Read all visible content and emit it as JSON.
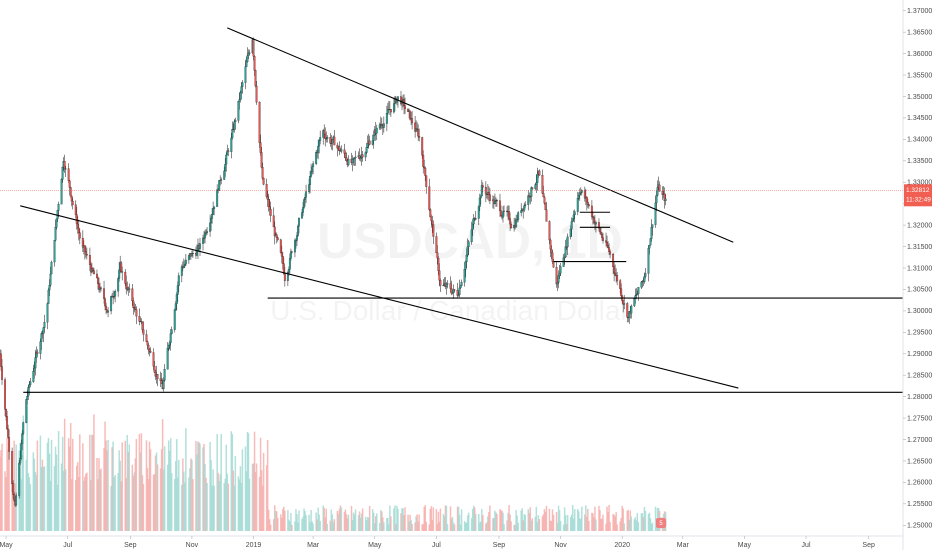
{
  "chart_data": {
    "type": "candlestick",
    "symbol_watermark": "USDCAD, 1D",
    "description_watermark": "U.S. Dollar / Canadian Dollar",
    "y_axis": {
      "min": 1.2475,
      "max": 1.3725,
      "tick_labels": [
        "1.37000",
        "1.36500",
        "1.36000",
        "1.35500",
        "1.35000",
        "1.34500",
        "1.34000",
        "1.33500",
        "1.33000",
        "1.32500",
        "1.32000",
        "1.31500",
        "1.31000",
        "1.30500",
        "1.30000",
        "1.29500",
        "1.29000",
        "1.28500",
        "1.28000",
        "1.27500",
        "1.27000",
        "1.26500",
        "1.26000",
        "1.25500",
        "1.25000"
      ],
      "position": "right"
    },
    "x_axis": {
      "start": "2018-04-25",
      "end": "2020-10-05",
      "tick_labels": [
        {
          "date": "2018-05-01",
          "label": "May"
        },
        {
          "date": "2018-07-01",
          "label": "Jul"
        },
        {
          "date": "2018-09-01",
          "label": "Sep"
        },
        {
          "date": "2018-11-01",
          "label": "Nov"
        },
        {
          "date": "2019-01-01",
          "label": "2019"
        },
        {
          "date": "2019-03-01",
          "label": "Mar"
        },
        {
          "date": "2019-05-01",
          "label": "May"
        },
        {
          "date": "2019-07-01",
          "label": "Jul"
        },
        {
          "date": "2019-09-01",
          "label": "Sep"
        },
        {
          "date": "2019-11-01",
          "label": "Nov"
        },
        {
          "date": "2020-01-01",
          "label": "2020"
        },
        {
          "date": "2020-03-01",
          "label": "Mar"
        },
        {
          "date": "2020-05-01",
          "label": "May"
        },
        {
          "date": "2020-07-01",
          "label": "Jul"
        },
        {
          "date": "2020-09-01",
          "label": "Sep"
        }
      ]
    },
    "price_anchors": [
      {
        "date": "2018-04-25",
        "price": 1.29
      },
      {
        "date": "2018-05-10",
        "price": 1.254
      },
      {
        "date": "2018-05-20",
        "price": 1.278
      },
      {
        "date": "2018-06-10",
        "price": 1.3
      },
      {
        "date": "2018-06-27",
        "price": 1.336
      },
      {
        "date": "2018-07-15",
        "price": 1.315
      },
      {
        "date": "2018-08-10",
        "price": 1.3
      },
      {
        "date": "2018-08-22",
        "price": 1.31
      },
      {
        "date": "2018-09-15",
        "price": 1.294
      },
      {
        "date": "2018-10-03",
        "price": 1.282
      },
      {
        "date": "2018-10-20",
        "price": 1.31
      },
      {
        "date": "2018-11-10",
        "price": 1.315
      },
      {
        "date": "2018-12-10",
        "price": 1.34
      },
      {
        "date": "2018-12-31",
        "price": 1.364
      },
      {
        "date": "2019-01-10",
        "price": 1.33
      },
      {
        "date": "2019-02-01",
        "price": 1.308
      },
      {
        "date": "2019-02-20",
        "price": 1.325
      },
      {
        "date": "2019-03-10",
        "price": 1.342
      },
      {
        "date": "2019-04-10",
        "price": 1.334
      },
      {
        "date": "2019-05-25",
        "price": 1.35
      },
      {
        "date": "2019-06-15",
        "price": 1.34
      },
      {
        "date": "2019-07-05",
        "price": 1.306
      },
      {
        "date": "2019-07-22",
        "price": 1.304
      },
      {
        "date": "2019-08-15",
        "price": 1.329
      },
      {
        "date": "2019-09-15",
        "price": 1.32
      },
      {
        "date": "2019-10-10",
        "price": 1.332
      },
      {
        "date": "2019-10-28",
        "price": 1.306
      },
      {
        "date": "2019-11-20",
        "price": 1.329
      },
      {
        "date": "2019-12-20",
        "price": 1.313
      },
      {
        "date": "2020-01-07",
        "price": 1.299
      },
      {
        "date": "2020-01-22",
        "price": 1.307
      },
      {
        "date": "2020-02-05",
        "price": 1.329
      },
      {
        "date": "2020-02-14",
        "price": 1.325
      }
    ],
    "trend_lines": [
      {
        "name": "upper-descending-trendline",
        "from": {
          "date": "2018-12-06",
          "price": 1.366
        },
        "to": {
          "date": "2020-04-20",
          "price": 1.316
        }
      },
      {
        "name": "lower-descending-trendline",
        "from": {
          "date": "2018-05-15",
          "price": 1.3245
        },
        "to": {
          "date": "2020-04-25",
          "price": 1.282
        }
      },
      {
        "name": "support-line-upper",
        "from": {
          "date": "2019-01-15",
          "price": 1.303
        },
        "to": {
          "date": "2020-10-05",
          "price": 1.303
        }
      },
      {
        "name": "support-line-lower",
        "from": {
          "date": "2018-05-18",
          "price": 1.281
        },
        "to": {
          "date": "2020-10-05",
          "price": 1.281
        }
      },
      {
        "name": "range-level-1",
        "from": {
          "date": "2019-10-25",
          "price": 1.3115
        },
        "to": {
          "date": "2020-01-05",
          "price": 1.3115
        }
      },
      {
        "name": "range-level-2",
        "from": {
          "date": "2019-11-20",
          "price": 1.3195
        },
        "to": {
          "date": "2019-12-20",
          "price": 1.3195
        }
      },
      {
        "name": "range-level-3",
        "from": {
          "date": "2019-11-20",
          "price": 1.323
        },
        "to": {
          "date": "2019-12-20",
          "price": 1.323
        }
      }
    ],
    "last_price": {
      "value": "1.32812",
      "countdown": "11:32:49"
    },
    "colors": {
      "up": "#26a69a",
      "down": "#ef5350",
      "line": "#000000",
      "price_badge": "#f15f52"
    },
    "volume_icon_label": "5"
  }
}
